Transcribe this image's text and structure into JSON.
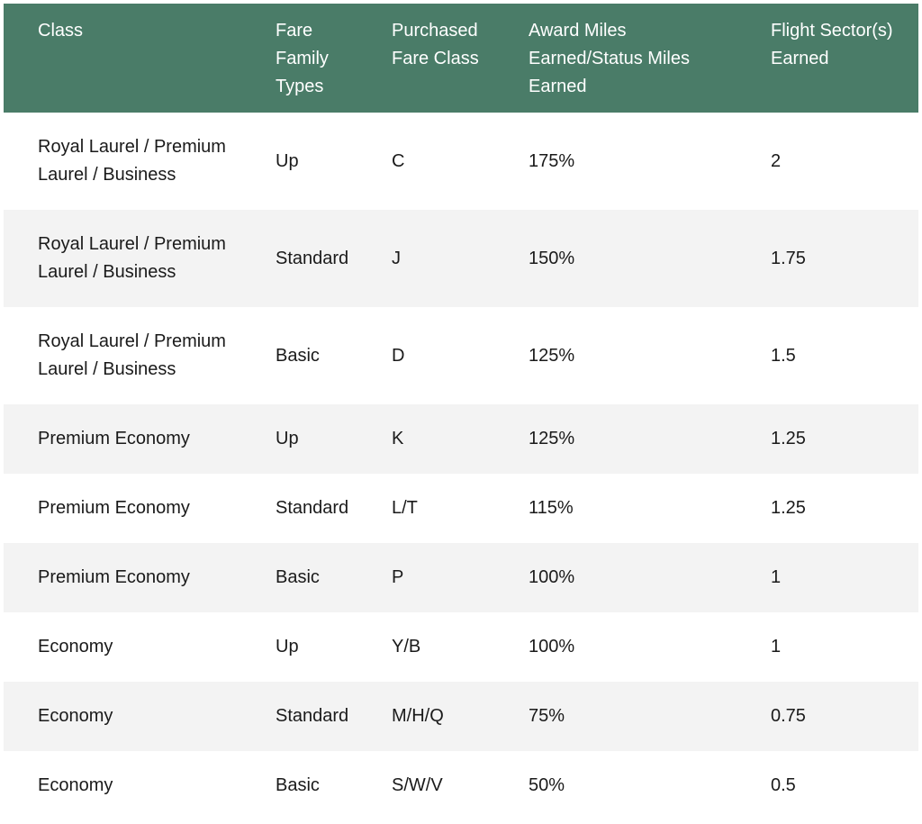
{
  "table": {
    "headers": [
      "Class",
      "Fare Family Types",
      "Purchased Fare Class",
      "Award Miles Earned/Status Miles Earned",
      "Flight Sector(s) Earned"
    ],
    "rows": [
      [
        "Royal Laurel / Premium Laurel / Business",
        "Up",
        "C",
        "175%",
        "2"
      ],
      [
        "Royal Laurel / Premium Laurel / Business",
        "Standard",
        "J",
        "150%",
        "1.75"
      ],
      [
        "Royal Laurel / Premium Laurel / Business",
        "Basic",
        "D",
        "125%",
        "1.5"
      ],
      [
        "Premium Economy",
        "Up",
        "K",
        "125%",
        "1.25"
      ],
      [
        "Premium Economy",
        "Standard",
        "L/T",
        "115%",
        "1.25"
      ],
      [
        "Premium Economy",
        "Basic",
        "P",
        "100%",
        "1"
      ],
      [
        "Economy",
        "Up",
        "Y/B",
        "100%",
        "1"
      ],
      [
        "Economy",
        "Standard",
        "M/H/Q",
        "75%",
        "0.75"
      ],
      [
        "Economy",
        "Basic",
        "S/W/V",
        "50%",
        "0.5"
      ]
    ]
  },
  "colors": {
    "header_bg": "#4a7c68",
    "header_text": "#ffffff",
    "stripe_bg": "#f3f3f3"
  }
}
